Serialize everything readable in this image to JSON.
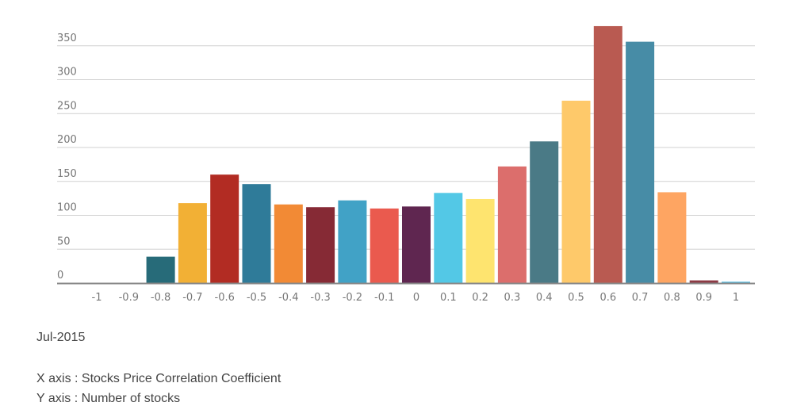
{
  "chart_data": {
    "type": "bar",
    "categories": [
      "-1",
      "-0.9",
      "-0.8",
      "-0.7",
      "-0.6",
      "-0.5",
      "-0.4",
      "-0.3",
      "-0.2",
      "-0.1",
      "0",
      "0.1",
      "0.2",
      "0.3",
      "0.4",
      "0.5",
      "0.6",
      "0.7",
      "0.8",
      "0.9",
      "1"
    ],
    "values": [
      0,
      0,
      39,
      118,
      160,
      146,
      116,
      112,
      122,
      110,
      113,
      133,
      124,
      172,
      209,
      269,
      379,
      356,
      134,
      4,
      2
    ],
    "colors": [
      "#2a6f7c",
      "#2a6f7c",
      "#276b79",
      "#f2b035",
      "#b22c23",
      "#2f7b99",
      "#f28a35",
      "#862a35",
      "#41a2c6",
      "#ea5a4e",
      "#5f2650",
      "#53c8e6",
      "#fee46f",
      "#dc6e6c",
      "#4a7a86",
      "#fec96a",
      "#b95a51",
      "#478ca6",
      "#fea562",
      "#8c3a44",
      "#53b8dc"
    ],
    "yticks": [
      0,
      50,
      100,
      150,
      200,
      250,
      300,
      350
    ],
    "ylim": [
      0,
      385
    ],
    "grid": true
  },
  "notes": {
    "date": "Jul-2015",
    "xlabel": "X axis : Stocks Price Correlation Coefficient",
    "ylabel": "Y axis : Number of stocks"
  }
}
